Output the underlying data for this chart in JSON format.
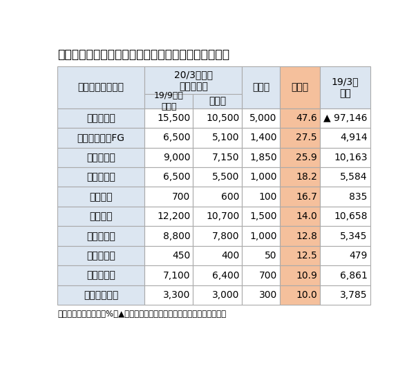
{
  "title": "業績予想修正後の純利益増加率が高い銀行・グループ",
  "rows": [
    [
      "ス　ル　ガ",
      "15,500",
      "10,500",
      "5,000",
      "47.6",
      "▲ 97,146"
    ],
    [
      "東京きらぼしFG",
      "6,500",
      "5,100",
      "1,400",
      "27.5",
      "4,914"
    ],
    [
      "トモニＨＤ",
      "9,000",
      "7,150",
      "1,850",
      "25.9",
      "10,163"
    ],
    [
      "百　十　四",
      "6,500",
      "5,500",
      "1,000",
      "18.2",
      "5,584"
    ],
    [
      "筑　　邦",
      "700",
      "600",
      "100",
      "16.7",
      "835"
    ],
    [
      "十　　六",
      "12,200",
      "10,700",
      "1,500",
      "14.0",
      "10,658"
    ],
    [
      "武　蔵　野",
      "8,800",
      "7,800",
      "1,000",
      "12.8",
      "5,345"
    ],
    [
      "福岡　中央",
      "450",
      "400",
      "50",
      "12.5",
      "479"
    ],
    [
      "大垣　共立",
      "7,100",
      "6,400",
      "700",
      "10.9",
      "6,861"
    ],
    [
      "フィデアＨＤ",
      "3,300",
      "3,000",
      "300",
      "10.0",
      "3,785"
    ]
  ],
  "footnote": "（注）単位：百万円、%、▲はマイナス。連結ベース（福岡中央銀は単体）",
  "bg_color_header": "#dce6f1",
  "bg_color_zoukaritsu": "#f5c09c",
  "bg_color_name_col": "#dce6f1",
  "bg_color_white": "#ffffff",
  "border_color": "#aaaaaa",
  "title_fontsize": 12.5,
  "table_fontsize": 10.0,
  "sub_fontsize": 9.5
}
